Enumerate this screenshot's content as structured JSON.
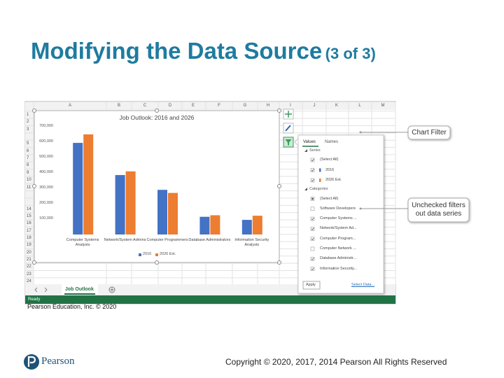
{
  "slide": {
    "title": "Modifying the Data Source",
    "title_suffix": "(3 of 3)",
    "source": "Pearson Education, Inc. © 2020",
    "copyright": "Copyright © 2020, 2017, 2014 Pearson All Rights Reserved",
    "logo": "Pearson"
  },
  "sheet": {
    "columns": [
      "A",
      "B",
      "C",
      "D",
      "E",
      "F",
      "G",
      "H",
      "I",
      "J",
      "K",
      "L",
      "M"
    ],
    "rows": [
      1,
      2,
      3,
      5,
      6,
      7,
      8,
      9,
      10,
      11,
      14,
      15,
      16,
      17,
      18,
      19,
      20,
      21,
      22,
      23,
      24
    ],
    "tab": "Job Outlook",
    "status": "Ready"
  },
  "chart_data": {
    "type": "bar",
    "title": "Job Outlook: 2016 and 2026",
    "categories": [
      "Computer Systems Analysts",
      "Network/System Admins",
      "Computer Programmers",
      "Database Administrators",
      "Information Security Analysts"
    ],
    "series": [
      {
        "name": "2016",
        "color": "#4472c4",
        "values": [
          595000,
          386000,
          290000,
          115000,
          95000
        ]
      },
      {
        "name": "2026 Est.",
        "color": "#ed7d31",
        "values": [
          650000,
          410000,
          270000,
          125000,
          122000
        ]
      }
    ],
    "ylim": [
      0,
      700000
    ],
    "yticks": [
      {
        "value": 100000,
        "label": "100,000"
      },
      {
        "value": 200000,
        "label": "200,000"
      },
      {
        "value": 300000,
        "label": "300,000"
      },
      {
        "value": 400000,
        "label": "400,000"
      },
      {
        "value": 500000,
        "label": "500,000"
      },
      {
        "value": 600000,
        "label": "600,000"
      },
      {
        "value": 700000,
        "label": "700,000"
      }
    ],
    "grid": false,
    "legend": "bottom"
  },
  "filter_panel": {
    "tabs": [
      "Values",
      "Names"
    ],
    "series_header": "Series",
    "series_items": [
      {
        "label": "(Select All)",
        "state": "checked"
      },
      {
        "label": "2016",
        "state": "checked",
        "color": "#4472c4"
      },
      {
        "label": "2026 Est.",
        "state": "checked",
        "color": "#ed7d31"
      }
    ],
    "categories_header": "Categories",
    "category_items": [
      {
        "label": "(Select All)",
        "state": "partial"
      },
      {
        "label": "Software Developers",
        "state": "unchecked"
      },
      {
        "label": "Computer Systems ...",
        "state": "checked"
      },
      {
        "label": "Network/System Ad...",
        "state": "checked"
      },
      {
        "label": "Computer Program...",
        "state": "checked"
      },
      {
        "label": "Computer Network ...",
        "state": "unchecked"
      },
      {
        "label": "Database Administr...",
        "state": "checked"
      },
      {
        "label": "Information Security...",
        "state": "checked"
      }
    ],
    "apply": "Apply",
    "select_data": "Select Data..."
  },
  "callouts": [
    {
      "lines": [
        "Chart Filter"
      ]
    },
    {
      "lines": [
        "Unchecked filters",
        "out data series"
      ]
    }
  ]
}
